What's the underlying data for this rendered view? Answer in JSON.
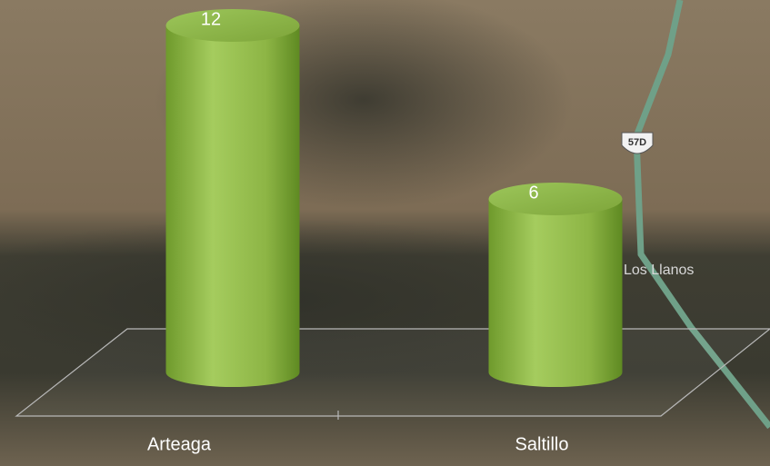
{
  "chart_data": {
    "type": "bar",
    "categories": [
      "Arteaga",
      "Saltillo"
    ],
    "values": [
      12,
      6
    ],
    "color": "#8fb84a",
    "ylim": [
      0,
      12
    ]
  },
  "map": {
    "route_shield": "57D",
    "place_label": "Los Llanos"
  }
}
